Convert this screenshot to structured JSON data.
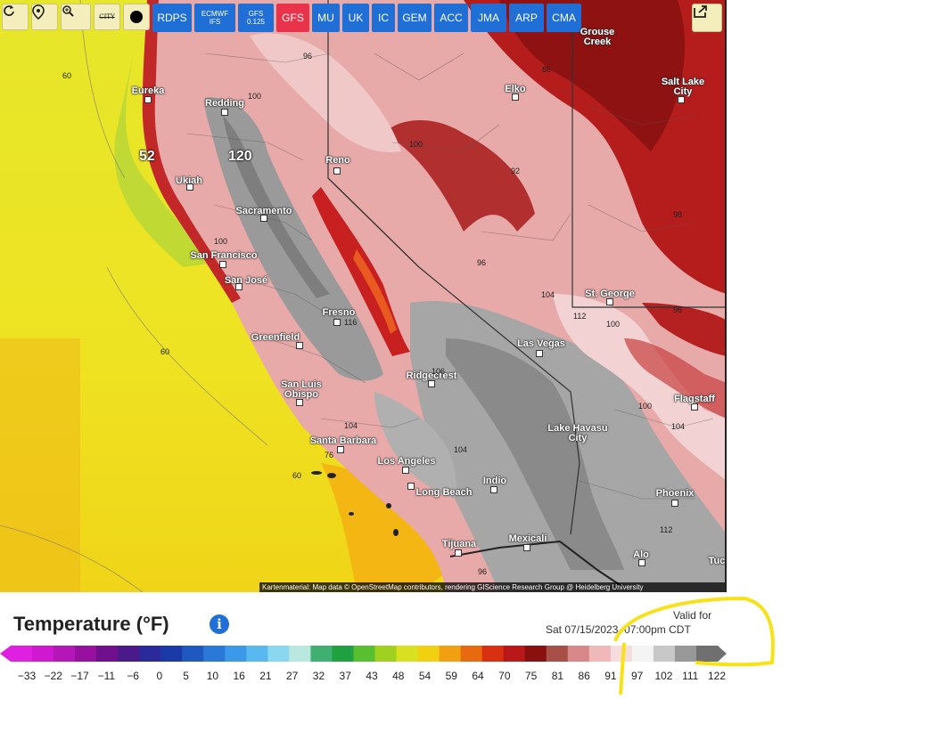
{
  "toolbar": {
    "tools": [
      {
        "name": "refresh-icon"
      },
      {
        "name": "location-pin-icon"
      },
      {
        "name": "zoom-icon"
      },
      {
        "name": "city-toggle-icon",
        "label": "CITY"
      },
      {
        "name": "dark-mode-icon"
      }
    ],
    "models": [
      {
        "label": "RDPS"
      },
      {
        "label": "ECMWF IFS"
      },
      {
        "label": "GFS 0.125"
      },
      {
        "label": "GFS"
      },
      {
        "label": "MU"
      },
      {
        "label": "UK"
      },
      {
        "label": "IC"
      },
      {
        "label": "GEM"
      },
      {
        "label": "ACC"
      },
      {
        "label": "JMA"
      },
      {
        "label": "ARP"
      },
      {
        "label": "CMA"
      }
    ],
    "active_model": "GFS",
    "share_icon": "share-icon"
  },
  "map": {
    "cities": [
      {
        "name": "Eureka"
      },
      {
        "name": "Redding"
      },
      {
        "name": "Ukiah"
      },
      {
        "name": "Sacramento"
      },
      {
        "name": "San Francisco"
      },
      {
        "name": "San José"
      },
      {
        "name": "Fresno"
      },
      {
        "name": "Greenfield"
      },
      {
        "name": "San Luis Obispo"
      },
      {
        "name": "Santa Barbara"
      },
      {
        "name": "Los Angeles"
      },
      {
        "name": "Long Beach"
      },
      {
        "name": "Indio"
      },
      {
        "name": "Tijuana"
      },
      {
        "name": "Mexicali"
      },
      {
        "name": "Reno"
      },
      {
        "name": "Elko"
      },
      {
        "name": "Grouse Creek"
      },
      {
        "name": "Salt Lake City"
      },
      {
        "name": "St. George"
      },
      {
        "name": "Las Vegas"
      },
      {
        "name": "Ridgecrest"
      },
      {
        "name": "Lake Havasu City"
      },
      {
        "name": "Flagstaff"
      },
      {
        "name": "Phoenix"
      },
      {
        "name": "Alo"
      },
      {
        "name": "Tuc"
      }
    ],
    "contour_labels": [
      "60",
      "60",
      "60",
      "96",
      "100",
      "100",
      "100",
      "92",
      "96",
      "104",
      "112",
      "100",
      "96",
      "100",
      "104",
      "104",
      "104",
      "112",
      "96",
      "98",
      "86",
      "116",
      "106",
      "76"
    ],
    "peak_labels": [
      "52",
      "120"
    ],
    "attribution": "Kartenmaterial: Map data © OpenStreetMap contributors, rendering GIScience Research Group @ Heidelberg University"
  },
  "legend": {
    "title": "Temperature (°F)",
    "info_icon": "info-icon",
    "valid_label": "Valid for",
    "valid_time": "Sat 07/15/2023, 07:00pm CDT",
    "ticks": [
      "-33",
      "-22",
      "-17",
      "-11",
      "-6",
      "0",
      "5",
      "10",
      "16",
      "21",
      "27",
      "32",
      "37",
      "43",
      "48",
      "54",
      "59",
      "64",
      "70",
      "75",
      "81",
      "86",
      "91",
      "97",
      "102",
      "111",
      "122"
    ],
    "colors": [
      "#e020e0",
      "#d018d0",
      "#b416b8",
      "#9810a0",
      "#70108c",
      "#4a1a8a",
      "#2a2a9a",
      "#1a3aa8",
      "#1e58c0",
      "#2a78d8",
      "#3c98e8",
      "#5ab8f0",
      "#8ad8f0",
      "#b8e8e0",
      "#40b070",
      "#20a040",
      "#58c030",
      "#a0d020",
      "#d8e020",
      "#f0d010",
      "#f0a010",
      "#e86a10",
      "#d83010",
      "#b81818",
      "#8a1010",
      "#a85048",
      "#d88888",
      "#f0b8b8",
      "#f6dcdc",
      "#f4f4f4",
      "#c8c8c8",
      "#989898",
      "#707070"
    ]
  }
}
